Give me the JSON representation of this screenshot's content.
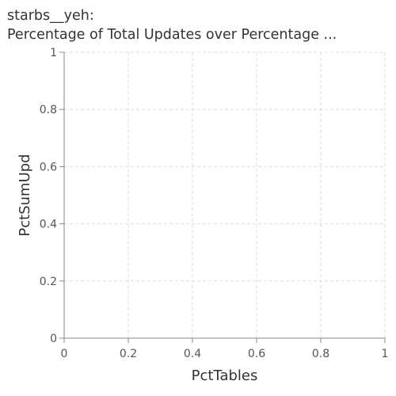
{
  "chart_data": {
    "type": "scatter",
    "title": [
      "starbs__yeh:",
      "Percentage of Total Updates over Percentage ..."
    ],
    "xlabel": "PctTables",
    "ylabel": "PctSumUpd",
    "xlim": [
      0,
      1
    ],
    "ylim": [
      0,
      1
    ],
    "xticks": [
      0,
      0.2,
      0.4,
      0.6,
      0.8,
      1
    ],
    "yticks": [
      0,
      0.2,
      0.4,
      0.6,
      0.8,
      1
    ],
    "x_tick_labels": [
      "0",
      "0.2",
      "0.4",
      "0.6",
      "0.8",
      "1"
    ],
    "y_tick_labels": [
      "0",
      "0.2",
      "0.4",
      "0.6",
      "0.8",
      "1"
    ],
    "grid": true,
    "series": []
  }
}
